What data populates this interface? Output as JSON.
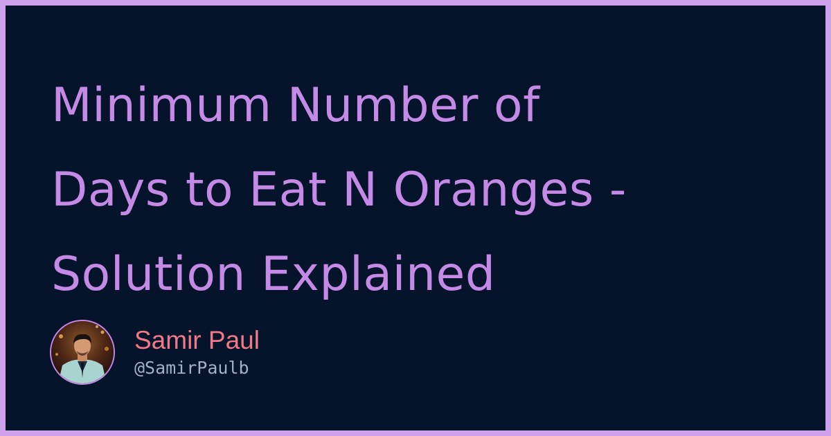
{
  "post": {
    "title_lines": [
      "Minimum Number of",
      "Days to Eat N Oranges -",
      "Solution Explained"
    ]
  },
  "author": {
    "name": "Samir Paul",
    "handle": "@SamirPaulb",
    "avatar_icon": "author-photo"
  },
  "colors": {
    "border": "#cfa2ec",
    "background": "#05142b",
    "title": "#c58ae6",
    "author_name": "#ef7a86",
    "author_handle": "#a3b1c7"
  }
}
